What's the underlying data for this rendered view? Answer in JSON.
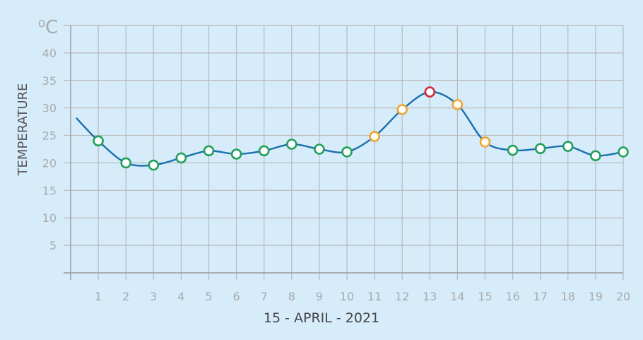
{
  "chart_data": {
    "type": "line",
    "unit_label": "⁰C",
    "ylabel": "TEMPERATURE",
    "xlabel": "15 - APRIL - 2021",
    "x_ticks": [
      "1",
      "2",
      "3",
      "4",
      "5",
      "6",
      "7",
      "8",
      "9",
      "10",
      "11",
      "12",
      "13",
      "14",
      "15",
      "16",
      "17",
      "18",
      "19",
      "20"
    ],
    "y_ticks": [
      5,
      10,
      15,
      20,
      25,
      30,
      35,
      40
    ],
    "xlim": [
      0,
      20
    ],
    "ylim": [
      0,
      45
    ],
    "grid": true,
    "series": [
      {
        "line_color": "#1a6fae",
        "x": [
          1,
          2,
          3,
          4,
          5,
          6,
          7,
          8,
          9,
          10,
          11,
          12,
          13,
          14,
          15,
          16,
          17,
          18,
          19,
          20
        ],
        "values": [
          24.0,
          20.0,
          19.6,
          20.9,
          22.2,
          21.6,
          22.2,
          23.4,
          22.5,
          22.0,
          24.8,
          29.7,
          32.9,
          30.6,
          23.8,
          22.3,
          22.6,
          23.0,
          21.3,
          22.0
        ],
        "marker_colors": [
          "#22a05a",
          "#22a05a",
          "#22a05a",
          "#22a05a",
          "#22a05a",
          "#22a05a",
          "#22a05a",
          "#22a05a",
          "#22a05a",
          "#22a05a",
          "#f0a430",
          "#f0a430",
          "#d02a3a",
          "#f0a430",
          "#f0a430",
          "#22a05a",
          "#22a05a",
          "#22a05a",
          "#22a05a",
          "#22a05a"
        ]
      }
    ],
    "line_start": {
      "x": 0.2,
      "y": 28.2
    }
  }
}
